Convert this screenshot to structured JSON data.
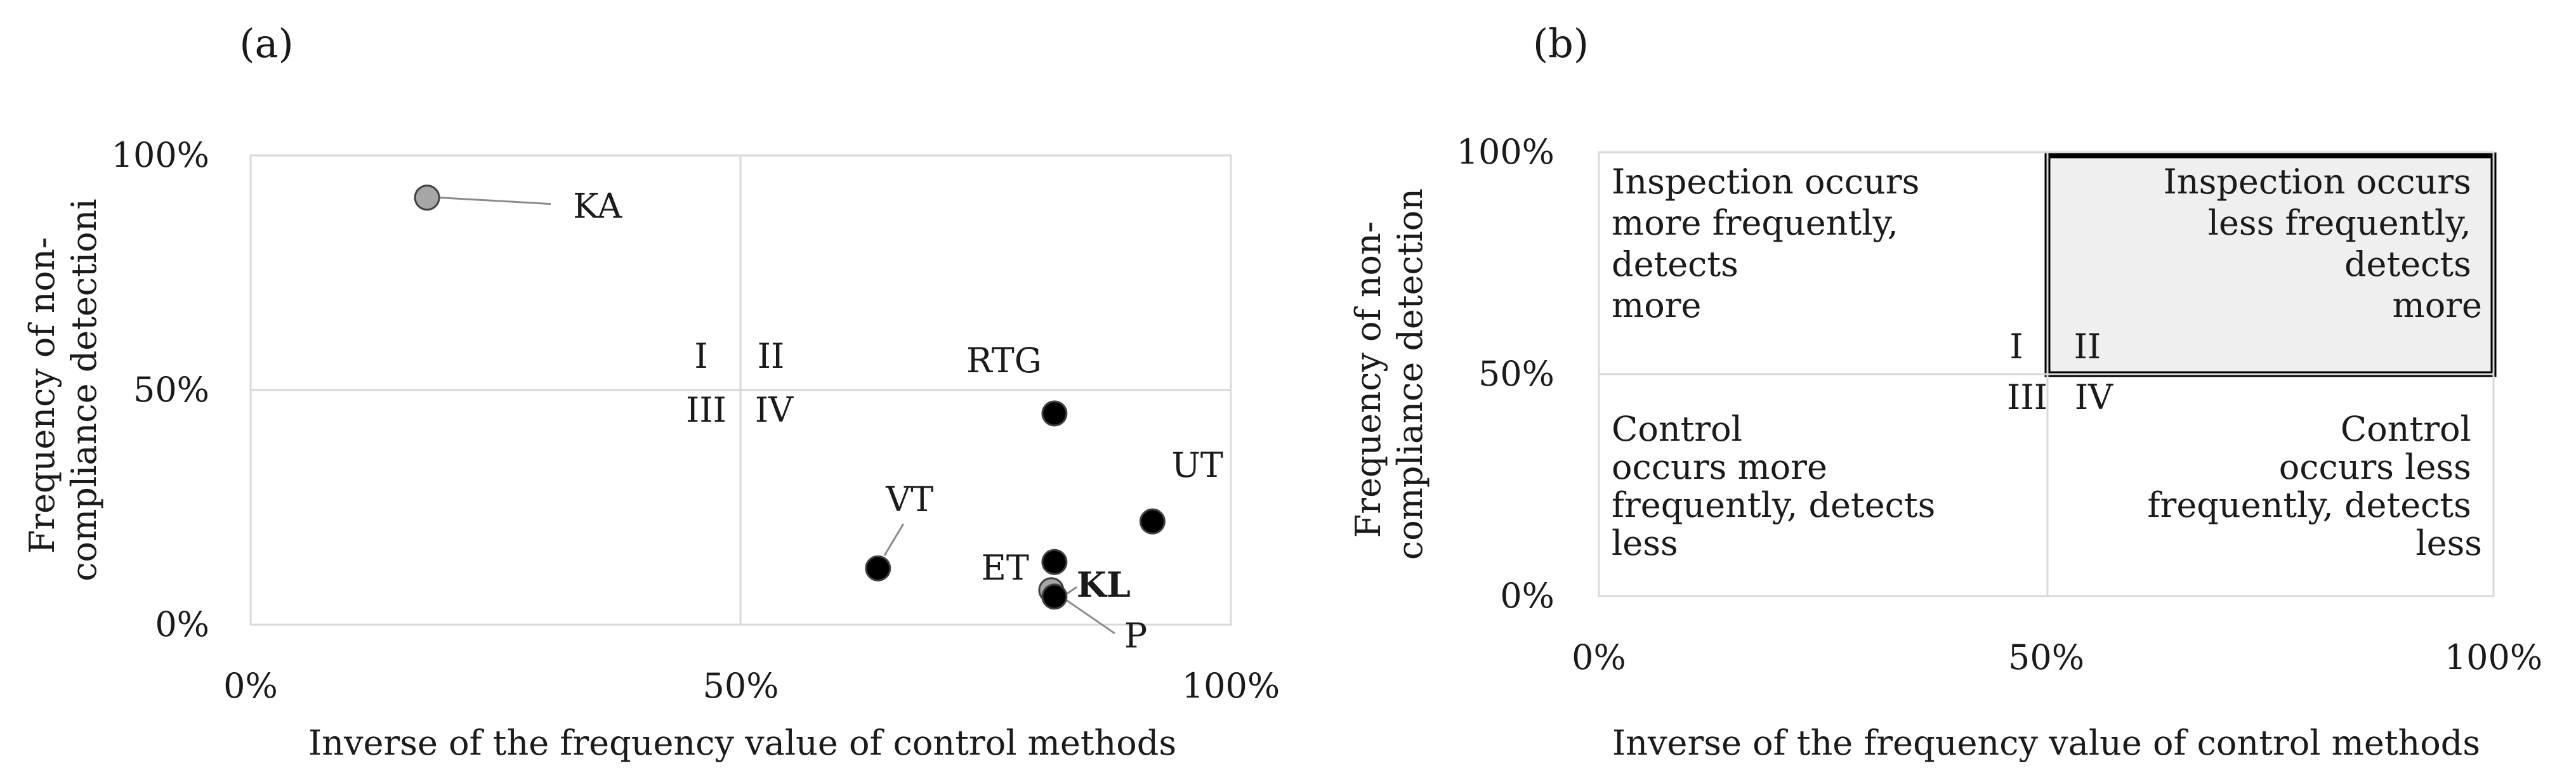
{
  "chart_data": [
    {
      "type": "scatter",
      "panel_label": "(a)",
      "xlabel": "Inverse of the frequency value of control methods",
      "ylabel_lines": [
        "Frequency of non-",
        "compliance detectioni"
      ],
      "xlim": [
        0,
        100
      ],
      "ylim": [
        0,
        100
      ],
      "x_ticks": [
        {
          "value": 0,
          "label": "0%"
        },
        {
          "value": 50,
          "label": "50%"
        },
        {
          "value": 100,
          "label": "100%"
        }
      ],
      "y_ticks": [
        {
          "value": 0,
          "label": "0%"
        },
        {
          "value": 50,
          "label": "50%"
        },
        {
          "value": 100,
          "label": "100%"
        }
      ],
      "quadrant_labels": [
        "I",
        "II",
        "III",
        "IV"
      ],
      "grid": false,
      "quadrant_dividers": {
        "x": 50,
        "y": 50
      },
      "points": [
        {
          "label": "KA",
          "x": 18,
          "y": 91,
          "color": "#a6a6a6"
        },
        {
          "label": "RTG",
          "x": 82,
          "y": 45,
          "color": "#000000"
        },
        {
          "label": "UT",
          "x": 92,
          "y": 22,
          "color": "#000000"
        },
        {
          "label": "VT",
          "x": 64,
          "y": 12,
          "color": "#000000"
        },
        {
          "label": "ET",
          "x": 82,
          "y": 12,
          "color": "#000000"
        },
        {
          "label": "KL",
          "x": 82,
          "y": 8,
          "color": "#a6a6a6"
        },
        {
          "label": "P",
          "x": 82,
          "y": 8,
          "color": "#000000"
        }
      ]
    },
    {
      "type": "quadrant",
      "panel_label": "(b)",
      "xlabel": "Inverse of the frequency value of control methods",
      "ylabel_lines": [
        "Frequency of non-",
        "compliance detection"
      ],
      "xlim": [
        0,
        100
      ],
      "ylim": [
        0,
        100
      ],
      "x_ticks": [
        {
          "value": 0,
          "label": "0%"
        },
        {
          "value": 50,
          "label": "50%"
        },
        {
          "value": 100,
          "label": "100%"
        }
      ],
      "y_ticks": [
        {
          "value": 0,
          "label": "0%"
        },
        {
          "value": 50,
          "label": "50%"
        },
        {
          "value": 100,
          "label": "100%"
        }
      ],
      "quadrant_labels": [
        "I",
        "II",
        "III",
        "IV"
      ],
      "highlighted_quadrant": "II",
      "highlight_color": "#efefef",
      "quadrant_texts": {
        "I": [
          "Inspection occurs",
          "more frequently,",
          "detects",
          "more"
        ],
        "II": [
          "Inspection occurs",
          "less frequently,",
          "detects",
          "more"
        ],
        "III": [
          "Control",
          "occurs more",
          "frequently, detects",
          "less"
        ],
        "IV": [
          "Control",
          "occurs less",
          "frequently, detects",
          "less"
        ]
      }
    }
  ]
}
